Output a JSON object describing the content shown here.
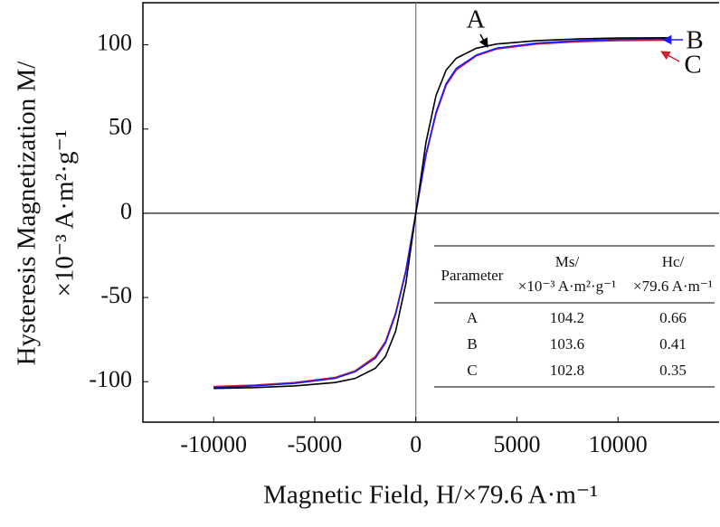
{
  "chart_data": {
    "type": "line",
    "x_label": "Magnetic Field, H/×79.6 A·m⁻¹",
    "y_label": [
      "Hysteresis Magnetization M/",
      "×10⁻³ A·m²·g⁻¹"
    ],
    "x": [
      -10000,
      -8000,
      -6000,
      -4000,
      -3000,
      -2000,
      -1500,
      -1000,
      -500,
      0,
      500,
      1000,
      1500,
      2000,
      3000,
      4000,
      6000,
      8000,
      10000,
      12500
    ],
    "series": [
      {
        "name": "A",
        "color": "#000000",
        "values": [
          -104,
          -103.5,
          -102.5,
          -100.5,
          -98,
          -92,
          -85,
          -70,
          -42,
          0,
          42,
          70,
          85,
          92,
          98,
          100.5,
          102.5,
          103.5,
          104,
          104.2
        ]
      },
      {
        "name": "B",
        "color": "#1a1aff",
        "values": [
          -103.5,
          -102.5,
          -101,
          -98,
          -94,
          -86,
          -77,
          -60,
          -35,
          0,
          35,
          60,
          77,
          86,
          94,
          98,
          101,
          102.5,
          103.2,
          103.6
        ]
      },
      {
        "name": "C",
        "color": "#cc2233",
        "values": [
          -102.8,
          -102,
          -100.5,
          -97.5,
          -93.5,
          -85,
          -76,
          -59,
          -34,
          0,
          34,
          59,
          76,
          85,
          93.5,
          97.5,
          100.5,
          101.8,
          102.5,
          102.8
        ]
      }
    ],
    "xlim": [
      -13500,
      15000
    ],
    "xticks": [
      -10000,
      -5000,
      0,
      5000,
      10000
    ],
    "ylim": [
      -124,
      125
    ],
    "yticks": [
      -100,
      -50,
      0,
      50,
      100
    ],
    "table": {
      "columns": [
        [
          "Parameter"
        ],
        [
          "Ms/",
          "×10⁻³ A·m²·g⁻¹"
        ],
        [
          "Hc/",
          "×79.6 A·m⁻¹"
        ]
      ],
      "rows": [
        [
          "A",
          104.2,
          0.66
        ],
        [
          "B",
          103.6,
          0.41
        ],
        [
          "C",
          102.8,
          0.35
        ]
      ]
    }
  }
}
